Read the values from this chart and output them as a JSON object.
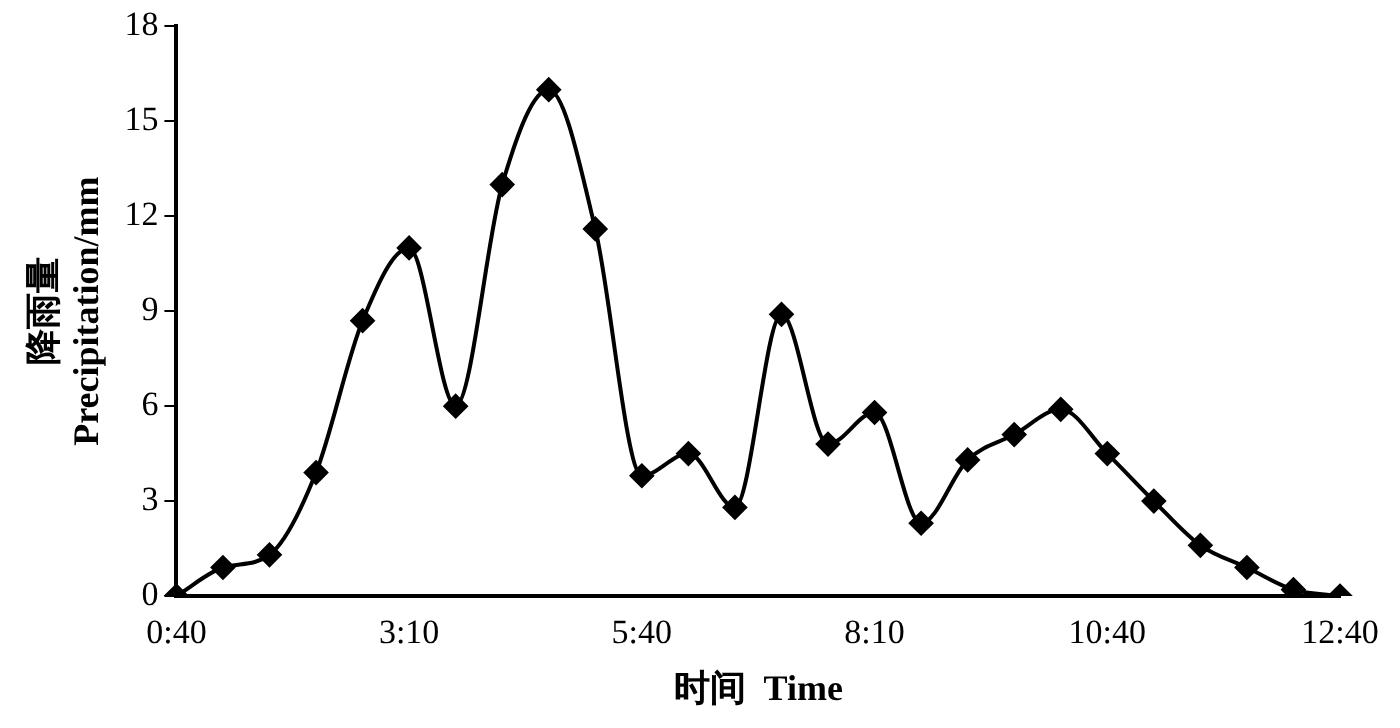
{
  "chart_data": {
    "type": "line",
    "xlabel": "时间  Time",
    "ylabel": "降雨量\nPrecipitation/mm",
    "categories": [
      "0:40",
      null,
      null,
      null,
      null,
      "3:10",
      null,
      null,
      null,
      null,
      "5:40",
      null,
      null,
      null,
      null,
      "8:10",
      null,
      null,
      null,
      null,
      "10:40",
      null,
      null,
      null,
      null,
      "12:40"
    ],
    "series": [
      {
        "color": "#000000",
        "values": [
          0,
          0.9,
          1.3,
          3.9,
          8.7,
          11.0,
          6.0,
          13.0,
          16.0,
          11.6,
          3.8,
          4.5,
          2.8,
          8.9,
          4.8,
          5.8,
          2.3,
          4.3,
          5.1,
          5.9,
          4.5,
          3.0,
          1.6,
          0.9,
          0.2,
          0
        ]
      }
    ],
    "ylim": [
      0,
      18
    ],
    "yticks": [
      0,
      3,
      6,
      9,
      12,
      15,
      18
    ],
    "grid": false,
    "legend": false,
    "marker": "diamond",
    "line_style": "solid"
  }
}
